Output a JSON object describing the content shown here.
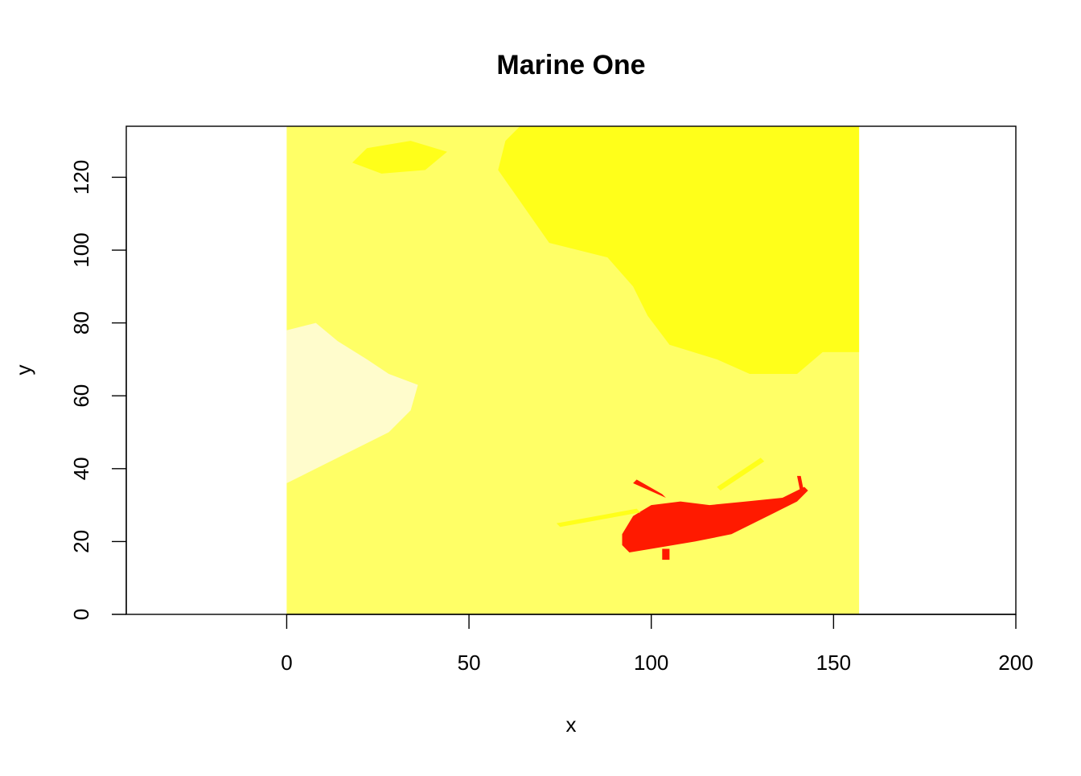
{
  "chart_data": {
    "type": "heatmap",
    "title": "Marine One",
    "xlabel": "x",
    "ylabel": "y",
    "xlim": [
      -44,
      200
    ],
    "ylim": [
      0,
      134
    ],
    "x_ticks": [
      0,
      50,
      100,
      150,
      200
    ],
    "y_ticks": [
      0,
      20,
      40,
      60,
      80,
      100,
      120
    ],
    "image_extent": {
      "x": [
        0,
        157
      ],
      "y": [
        0,
        134
      ]
    },
    "palette": [
      "#ff0000",
      "#ff8000",
      "#ffff00",
      "#ffff66",
      "#ffffcc",
      "#ffffff"
    ],
    "colors": {
      "red": "#ff1a00",
      "yellow": "#ffff1a",
      "light_yellow": "#ffff66",
      "pale_yellow": "#fffccc"
    },
    "regions": [
      {
        "name": "background",
        "color": "#ffff66",
        "points": [
          [
            0,
            0
          ],
          [
            157,
            0
          ],
          [
            157,
            134
          ],
          [
            0,
            134
          ]
        ]
      },
      {
        "name": "bright-sky",
        "color": "#ffff1a",
        "points": [
          [
            64,
            134
          ],
          [
            157,
            134
          ],
          [
            157,
            72
          ],
          [
            147,
            72
          ],
          [
            140,
            66
          ],
          [
            127,
            66
          ],
          [
            118,
            70
          ],
          [
            105,
            74
          ],
          [
            99,
            82
          ],
          [
            95,
            90
          ],
          [
            88,
            98
          ],
          [
            72,
            102
          ],
          [
            65,
            112
          ],
          [
            58,
            122
          ],
          [
            60,
            130
          ]
        ]
      },
      {
        "name": "bright-patch",
        "color": "#ffff1a",
        "points": [
          [
            18,
            124
          ],
          [
            22,
            128
          ],
          [
            34,
            130
          ],
          [
            44,
            127
          ],
          [
            38,
            122
          ],
          [
            26,
            121
          ]
        ]
      },
      {
        "name": "pale-cloud",
        "color": "#fffccc",
        "points": [
          [
            0,
            78
          ],
          [
            8,
            80
          ],
          [
            14,
            75
          ],
          [
            22,
            70
          ],
          [
            28,
            66
          ],
          [
            36,
            63
          ],
          [
            34,
            56
          ],
          [
            28,
            50
          ],
          [
            20,
            46
          ],
          [
            12,
            42
          ],
          [
            4,
            38
          ],
          [
            0,
            36
          ]
        ]
      },
      {
        "name": "helicopter-body",
        "color": "#ff1a00",
        "points": [
          [
            94,
            17
          ],
          [
            100,
            18
          ],
          [
            112,
            20
          ],
          [
            122,
            22
          ],
          [
            128,
            25
          ],
          [
            134,
            28
          ],
          [
            140,
            31
          ],
          [
            143,
            34
          ],
          [
            142,
            35
          ],
          [
            136,
            32
          ],
          [
            126,
            31
          ],
          [
            116,
            30
          ],
          [
            108,
            31
          ],
          [
            100,
            30
          ],
          [
            95,
            27
          ],
          [
            92,
            22
          ],
          [
            92,
            19
          ]
        ]
      },
      {
        "name": "rotor-blade",
        "color": "#ff1a00",
        "points": [
          [
            95,
            36
          ],
          [
            96,
            37
          ],
          [
            103,
            33
          ],
          [
            104,
            32
          ]
        ]
      },
      {
        "name": "tail-rotor",
        "color": "#ff1a00",
        "points": [
          [
            140,
            38
          ],
          [
            141,
            38
          ],
          [
            142,
            33
          ],
          [
            141,
            33
          ]
        ]
      },
      {
        "name": "skid",
        "color": "#ff1a00",
        "points": [
          [
            103,
            15
          ],
          [
            105,
            15
          ],
          [
            105,
            18
          ],
          [
            103,
            18
          ]
        ]
      },
      {
        "name": "blade-shadow-left",
        "color": "#ffff1a",
        "points": [
          [
            74,
            25
          ],
          [
            96,
            29
          ],
          [
            97,
            28
          ],
          [
            75,
            24
          ]
        ]
      },
      {
        "name": "blade-shadow-right",
        "color": "#ffff1a",
        "points": [
          [
            118,
            35
          ],
          [
            130,
            43
          ],
          [
            131,
            42
          ],
          [
            119,
            34
          ]
        ]
      }
    ]
  }
}
